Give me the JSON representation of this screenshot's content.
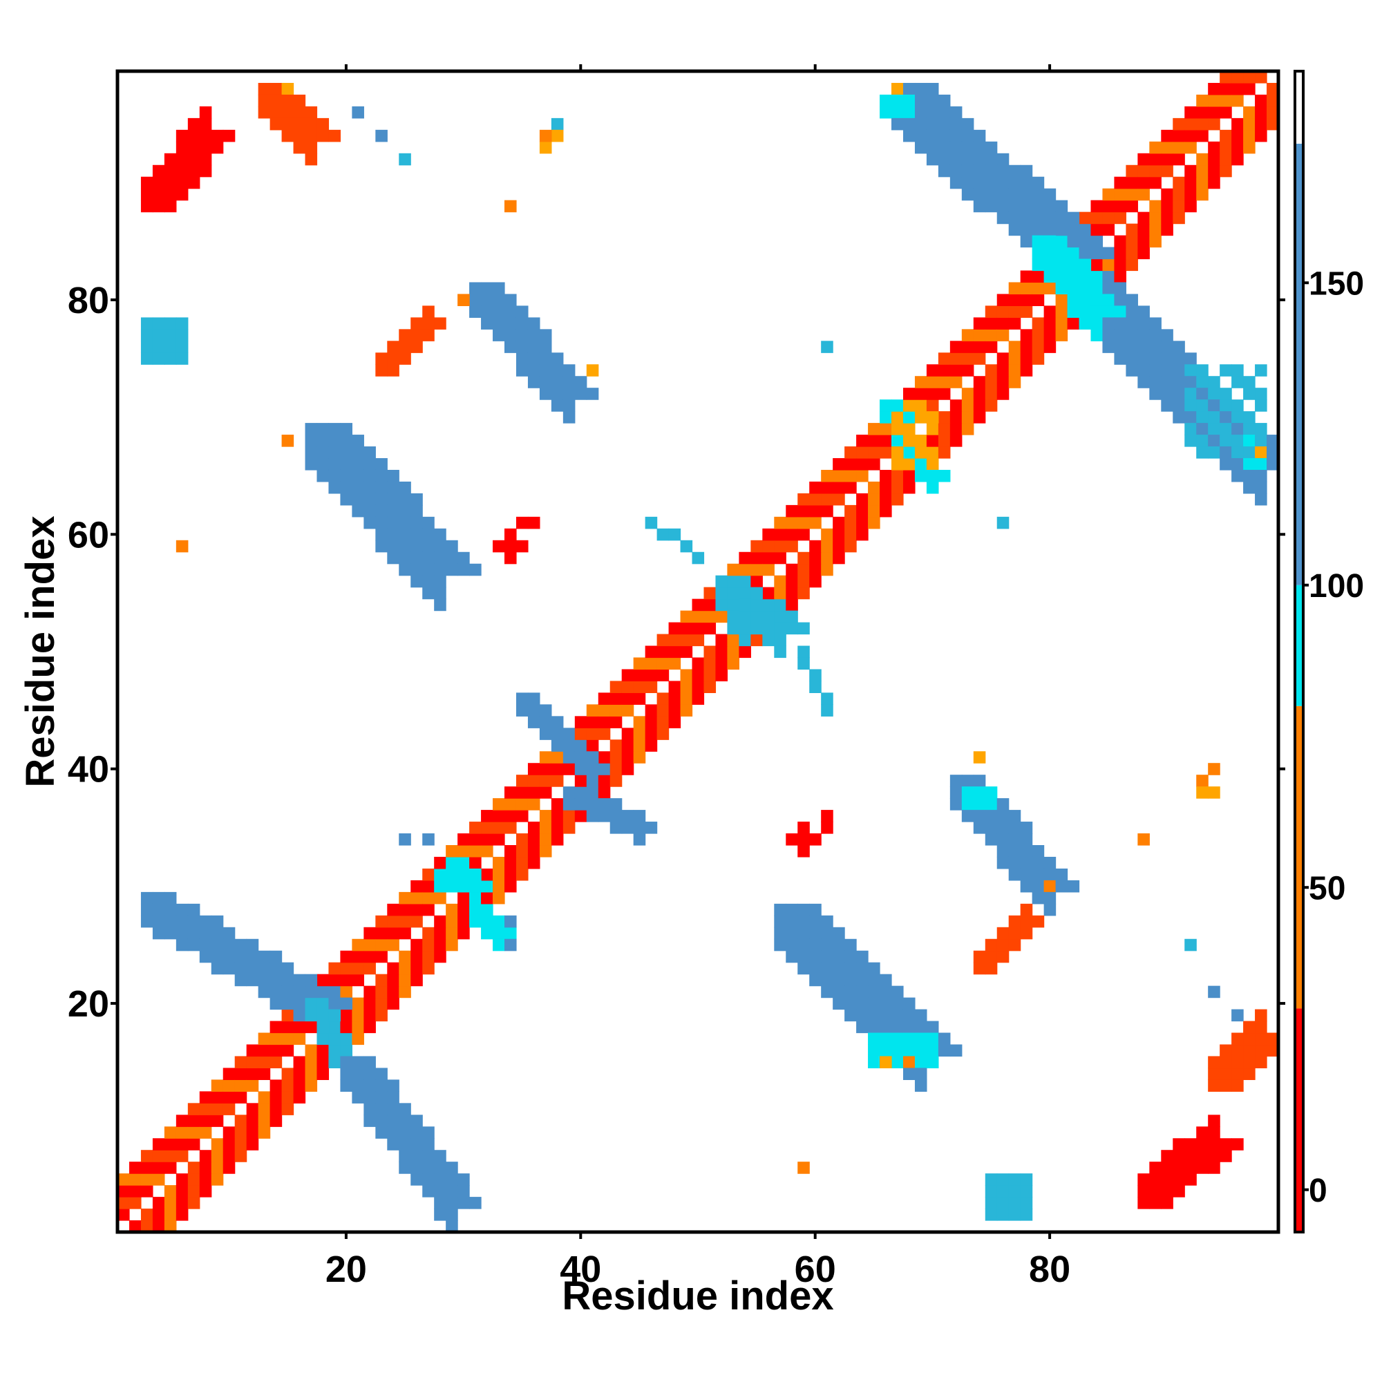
{
  "chart_data": {
    "type": "heatmap",
    "title": "",
    "xlabel": "Residue index",
    "ylabel": "Residue index",
    "xlim": [
      1,
      99
    ],
    "ylim": [
      1,
      99
    ],
    "x_ticks": [
      20,
      40,
      60,
      80
    ],
    "y_ticks": [
      20,
      40,
      60,
      80
    ],
    "colorbar": {
      "range": [
        -7,
        185
      ],
      "ticks": [
        0,
        50,
        100,
        150
      ],
      "segments": [
        {
          "from": -7,
          "to": 30,
          "color": "#ff0000"
        },
        {
          "from": 30,
          "to": 80,
          "color": "#ff7f00"
        },
        {
          "from": 80,
          "to": 100,
          "color": "#00e5ee"
        },
        {
          "from": 100,
          "to": 173,
          "color": "#4f94cd"
        },
        {
          "from": 173,
          "to": 185,
          "color": "#ffffff"
        }
      ]
    },
    "palette": {
      "red": "#ff0000",
      "orange_red": "#ff4500",
      "orange": "#ff7f00",
      "amber": "#ffa500",
      "cyan": "#00e5ee",
      "sky": "#29b6d8",
      "steel": "#4a8ec8"
    },
    "regions": [
      {
        "kind": "diag",
        "x0": 1,
        "x1": 99,
        "w": 4,
        "pattern": [
          "red",
          "orange",
          "red",
          "orange_red"
        ]
      },
      {
        "kind": "band",
        "x0": 3,
        "y0": 29,
        "x1": 18,
        "y1": 20,
        "w": 3,
        "color": "steel"
      },
      {
        "kind": "band",
        "x0": 20,
        "y0": 15,
        "x1": 29,
        "y1": 3,
        "w": 3,
        "color": "steel"
      },
      {
        "kind": "band",
        "x0": 17,
        "y0": 69,
        "x1": 28,
        "y1": 57,
        "w": 4,
        "color": "steel"
      },
      {
        "kind": "band",
        "x0": 31,
        "y0": 81,
        "x1": 39,
        "y1": 72,
        "w": 3,
        "color": "steel"
      },
      {
        "kind": "band",
        "x0": 57,
        "y0": 28,
        "x1": 69,
        "y1": 16,
        "w": 4,
        "color": "steel"
      },
      {
        "kind": "band",
        "x0": 72,
        "y0": 39,
        "x1": 80,
        "y1": 30,
        "w": 3,
        "color": "steel"
      },
      {
        "kind": "band",
        "x0": 67,
        "y0": 98,
        "x1": 82,
        "y1": 84,
        "w": 4,
        "color": "steel"
      },
      {
        "kind": "band",
        "x0": 82,
        "y0": 82,
        "x1": 98,
        "y1": 66,
        "w": 4,
        "color": "steel"
      },
      {
        "kind": "band",
        "x0": 35,
        "y0": 46,
        "x1": 41,
        "y1": 40,
        "w": 2,
        "color": "steel"
      },
      {
        "kind": "band",
        "x0": 39,
        "y0": 38,
        "x1": 45,
        "y1": 35,
        "w": 2,
        "color": "steel"
      },
      {
        "kind": "band",
        "x0": 52,
        "y0": 56,
        "x1": 54,
        "y1": 53,
        "w": 3,
        "color": "sky"
      },
      {
        "kind": "band",
        "x0": 55,
        "y0": 54,
        "x1": 57,
        "y1": 52,
        "w": 3,
        "color": "sky"
      },
      {
        "kind": "band",
        "x0": 29,
        "y0": 32,
        "x1": 31,
        "y1": 30,
        "w": 2,
        "color": "cyan"
      },
      {
        "kind": "band",
        "x0": 31,
        "y0": 28,
        "x1": 33,
        "y1": 26,
        "w": 2,
        "color": "cyan"
      },
      {
        "kind": "band",
        "x0": 17,
        "y0": 20,
        "x1": 19,
        "y1": 16,
        "w": 2,
        "color": "sky"
      },
      {
        "kind": "band",
        "x0": 66,
        "y0": 71,
        "x1": 70,
        "y1": 65,
        "w": 2,
        "color": "cyan"
      },
      {
        "kind": "band",
        "x0": 79,
        "y0": 85,
        "x1": 84,
        "y1": 79,
        "w": 3,
        "color": "cyan"
      },
      {
        "kind": "band",
        "x0": 46,
        "y0": 61,
        "x1": 50,
        "y1": 58,
        "w": 1,
        "color": "sky"
      },
      {
        "kind": "band",
        "x0": 59,
        "y0": 50,
        "x1": 61,
        "y1": 45,
        "w": 1,
        "color": "sky"
      },
      {
        "kind": "band",
        "x0": 13,
        "y0": 98,
        "x1": 17,
        "y1": 94,
        "w": 3,
        "color": "orange_red"
      },
      {
        "kind": "band",
        "x0": 3,
        "y0": 88,
        "x1": 8,
        "y1": 94,
        "w": 3,
        "color": "red"
      },
      {
        "kind": "band",
        "x0": 88,
        "y0": 3,
        "x1": 94,
        "y1": 8,
        "w": 3,
        "color": "red"
      },
      {
        "kind": "band",
        "x0": 94,
        "y0": 13,
        "x1": 98,
        "y1": 17,
        "w": 3,
        "color": "orange_red"
      },
      {
        "kind": "band",
        "x0": 23,
        "y0": 74,
        "x1": 27,
        "y1": 78,
        "w": 2,
        "color": "orange_red"
      },
      {
        "kind": "band",
        "x0": 74,
        "y0": 23,
        "x1": 78,
        "y1": 27,
        "w": 2,
        "color": "orange_red"
      },
      {
        "kind": "block",
        "x0": 73,
        "y0": 37,
        "x1": 75,
        "y1": 38,
        "color": "cyan"
      },
      {
        "kind": "block",
        "x0": 28,
        "y0": 30,
        "x1": 29,
        "y1": 31,
        "color": "cyan"
      },
      {
        "kind": "block",
        "x0": 66,
        "y0": 96,
        "x1": 68,
        "y1": 97,
        "color": "cyan"
      },
      {
        "kind": "block",
        "x0": 97,
        "y0": 66,
        "x1": 98,
        "y1": 68,
        "color": "cyan"
      },
      {
        "kind": "block",
        "x0": 92,
        "y0": 74,
        "x1": 98,
        "y1": 67,
        "color": "sky",
        "sparse": true
      },
      {
        "kind": "block",
        "x0": 75,
        "y0": 2,
        "x1": 78,
        "y1": 5,
        "color": "sky"
      },
      {
        "kind": "block",
        "x0": 3,
        "y0": 75,
        "x1": 6,
        "y1": 78,
        "color": "sky"
      },
      {
        "kind": "block",
        "x0": 65,
        "y0": 15,
        "x1": 70,
        "y1": 17,
        "color": "cyan"
      },
      {
        "kind": "block",
        "x0": 67,
        "y0": 66,
        "x1": 70,
        "y1": 71,
        "color": "amber",
        "sparse": true
      },
      {
        "kind": "points",
        "color": "steel",
        "pts": [
          [
            21,
            96
          ],
          [
            23,
            94
          ],
          [
            25,
            34
          ],
          [
            27,
            34
          ],
          [
            34,
            25
          ],
          [
            34,
            27
          ],
          [
            94,
            21
          ],
          [
            96,
            19
          ]
        ]
      },
      {
        "kind": "points",
        "color": "sky",
        "pts": [
          [
            25,
            92
          ],
          [
            61,
            76
          ],
          [
            76,
            61
          ],
          [
            92,
            25
          ],
          [
            38,
            95
          ]
        ]
      },
      {
        "kind": "points",
        "color": "orange",
        "pts": [
          [
            34,
            88
          ],
          [
            88,
            34
          ],
          [
            6,
            59
          ],
          [
            59,
            6
          ],
          [
            80,
            30
          ],
          [
            30,
            80
          ],
          [
            15,
            68
          ],
          [
            68,
            15
          ],
          [
            93,
            39
          ],
          [
            94,
            40
          ],
          [
            37,
            93
          ],
          [
            38,
            94
          ],
          [
            37,
            94
          ]
        ]
      },
      {
        "kind": "points",
        "color": "red",
        "pts": [
          [
            33,
            59
          ],
          [
            34,
            59
          ],
          [
            35,
            59
          ],
          [
            34,
            58
          ],
          [
            34,
            60
          ],
          [
            35,
            61
          ],
          [
            36,
            61
          ],
          [
            58,
            34
          ],
          [
            59,
            34
          ],
          [
            60,
            34
          ],
          [
            59,
            33
          ],
          [
            59,
            35
          ],
          [
            61,
            35
          ],
          [
            61,
            36
          ]
        ]
      },
      {
        "kind": "points",
        "color": "amber",
        "pts": [
          [
            38,
            94
          ],
          [
            37,
            93
          ],
          [
            93,
            38
          ],
          [
            94,
            38
          ],
          [
            15,
            98
          ],
          [
            67,
            98
          ],
          [
            98,
            67
          ],
          [
            74,
            41
          ],
          [
            41,
            74
          ],
          [
            66,
            15
          ]
        ]
      }
    ]
  }
}
